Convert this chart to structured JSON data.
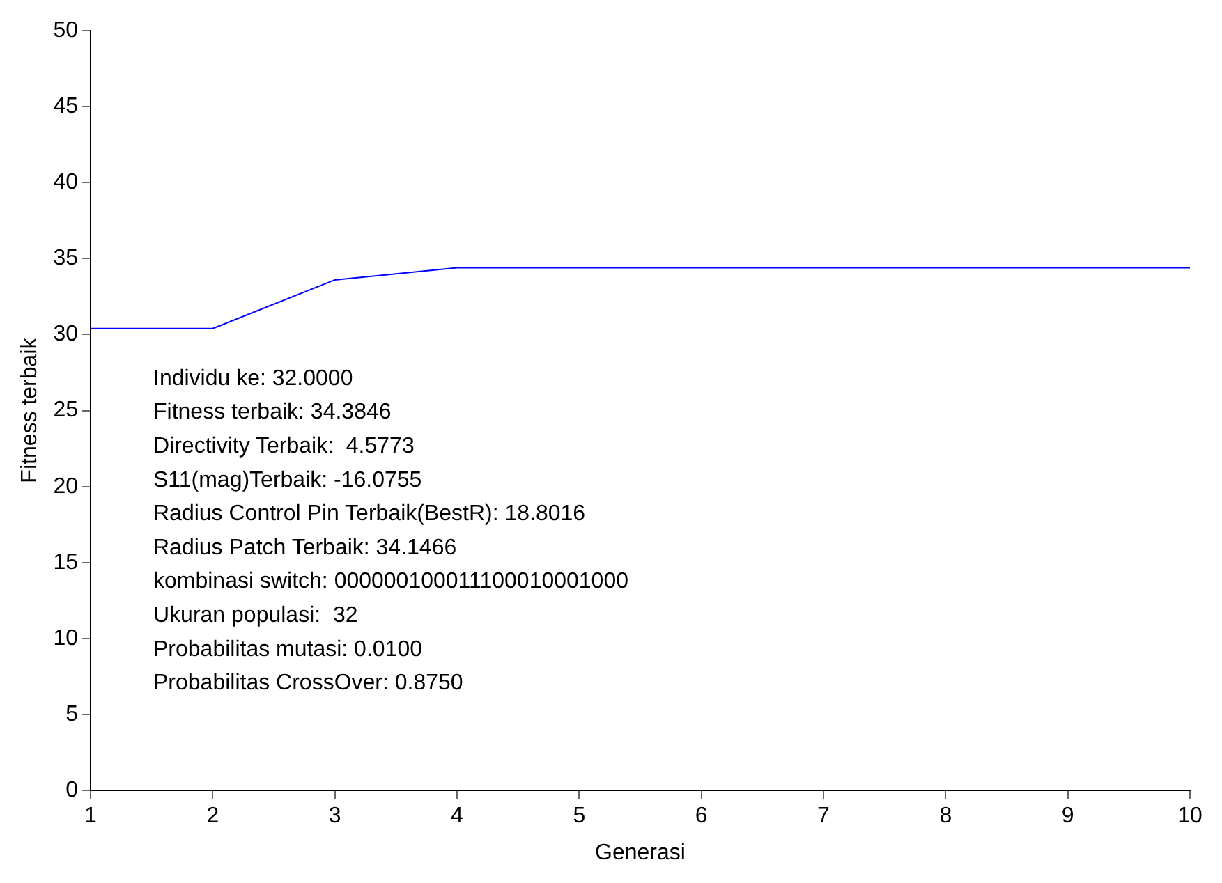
{
  "chart_data": {
    "type": "line",
    "xlabel": "Generasi",
    "ylabel": "Fitness terbaik",
    "x": [
      1,
      2,
      3,
      4,
      5,
      6,
      7,
      8,
      9,
      10
    ],
    "series": [
      {
        "color": "#0000ff",
        "values": [
          30.4,
          30.4,
          33.6,
          34.4,
          34.4,
          34.4,
          34.4,
          34.4,
          34.4,
          34.4
        ]
      }
    ],
    "xlim": [
      1,
      10
    ],
    "xticks": [
      1,
      2,
      3,
      4,
      5,
      6,
      7,
      8,
      9,
      10
    ],
    "ylim": [
      0,
      50
    ],
    "yticks": [
      0,
      5,
      10,
      15,
      20,
      25,
      30,
      35,
      40,
      45,
      50
    ],
    "grid": false,
    "legend": false,
    "marker": "none",
    "line_style": "solid",
    "annotations": [
      "Individu ke: 32.0000",
      "Fitness terbaik: 34.3846",
      "Directivity Terbaik:  4.5773",
      "S11(mag)Terbaik: -16.0755",
      "Radius Control Pin Terbaik(BestR): 18.8016",
      "Radius Patch Terbaik: 34.1466",
      "kombinasi switch: 000000100011100010001000",
      "Ukuran populasi:  32",
      "Probabilitas mutasi: 0.0100",
      "Probabilitas CrossOver: 0.8750"
    ]
  }
}
